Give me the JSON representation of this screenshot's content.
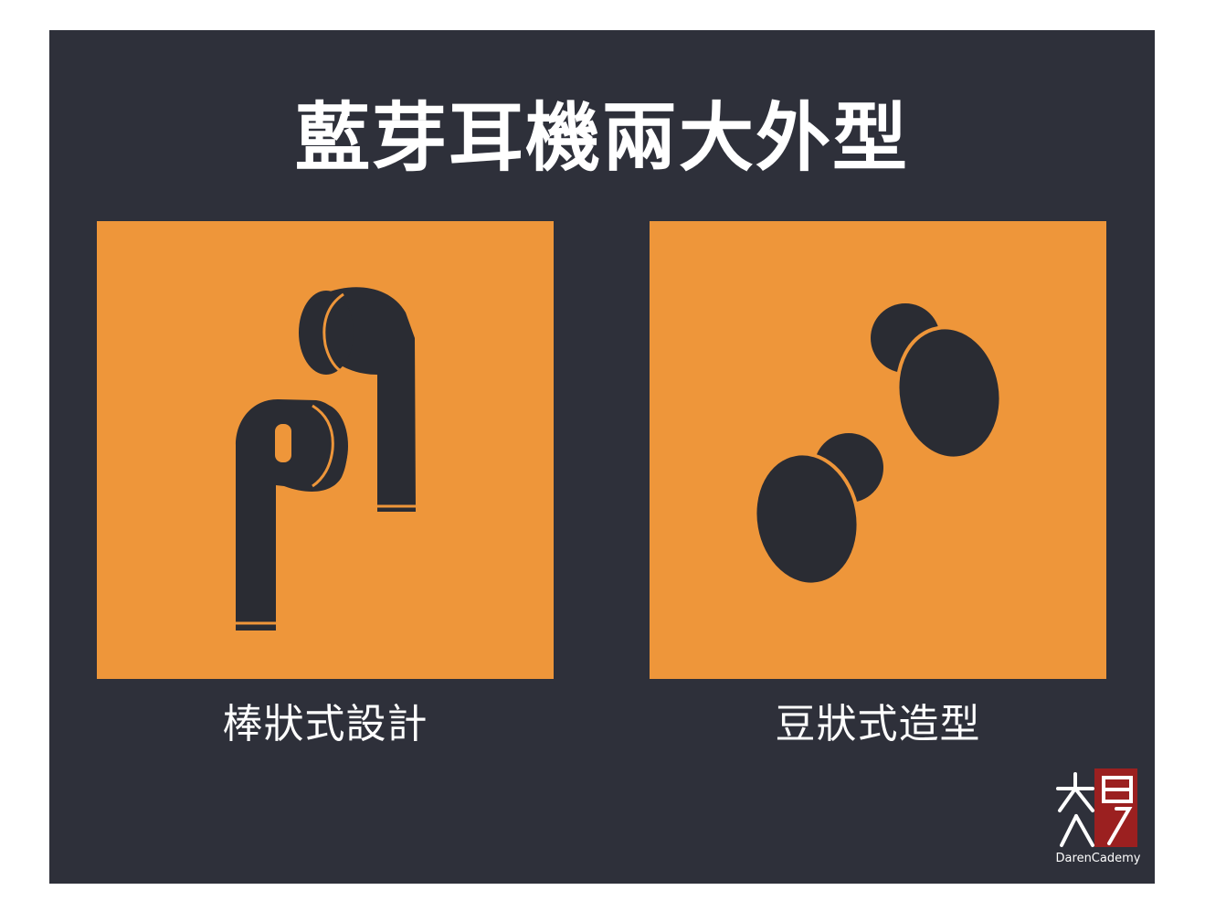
{
  "title": "藍芽耳機兩大外型",
  "panels": [
    {
      "caption": "棒狀式設計",
      "icon": "stem-earbuds-icon"
    },
    {
      "caption": "豆狀式造型",
      "icon": "bean-earbuds-icon"
    }
  ],
  "logo": {
    "brand": "DarenCademy",
    "characters": "大人學"
  },
  "colors": {
    "background": "#2e303a",
    "panel": "#ee963a",
    "icon": "#2a2c33",
    "logo_red": "#9b2020",
    "text": "#ffffff"
  }
}
